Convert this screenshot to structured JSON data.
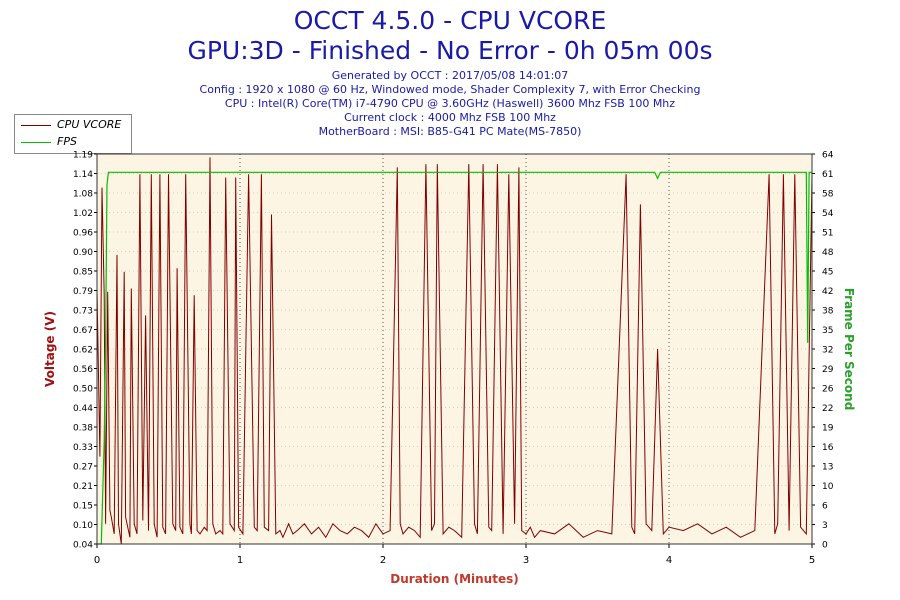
{
  "header": {
    "title": "OCCT 4.5.0 - CPU VCORE",
    "subtitle": "GPU:3D - Finished - No Error - 0h 05m 00s",
    "info_lines": [
      "Generated by OCCT : 2017/05/08 14:01:07",
      "Config : 1920 x 1080 @ 60 Hz, Windowed mode, Shader Complexity 7, with Error Checking",
      "CPU : Intel(R) Core(TM) i7-4790 CPU @ 3.60GHz (Haswell) 3600 Mhz FSB 100 Mhz",
      "Current clock : 4000 Mhz FSB 100 Mhz",
      "MotherBoard : MSI: B85-G41 PC Mate(MS-7850)"
    ]
  },
  "legend": [
    {
      "label": "CPU VCORE",
      "color": "#800000"
    },
    {
      "label": "FPS",
      "color": "#00c000"
    }
  ],
  "colors": {
    "plot_bg": "#fdf5e4",
    "vcore": "#800000",
    "fps": "#00c000",
    "left_axis": "#a01010",
    "right_axis": "#2ca02c",
    "xlabel": "#c0392b"
  },
  "chart_data": {
    "type": "line",
    "title": "",
    "xlabel": "Duration (Minutes)",
    "ylabel": "Voltage (V)",
    "y2label": "Frame Per Second",
    "xlim": [
      0,
      5
    ],
    "ylim": [
      0.04,
      1.2
    ],
    "y2lim": [
      0,
      64
    ],
    "x_ticks": [
      "0",
      "1",
      "2",
      "3",
      "4",
      "5"
    ],
    "y_ticks": [
      "0.04",
      "0.10",
      "0.15",
      "0.21",
      "0.27",
      "0.33",
      "0.38",
      "0.44",
      "0.50",
      "0.56",
      "0.62",
      "0.67",
      "0.73",
      "0.79",
      "0.85",
      "0.90",
      "0.96",
      "1.02",
      "1.08",
      "1.14",
      "1.19"
    ],
    "y2_ticks": [
      "0",
      "3",
      "6",
      "10",
      "13",
      "16",
      "19",
      "22",
      "26",
      "29",
      "32",
      "35",
      "38",
      "42",
      "45",
      "48",
      "51",
      "54",
      "58",
      "61",
      "64"
    ],
    "grid": true,
    "legend_position": "top-left",
    "series": [
      {
        "name": "CPU VCORE",
        "x": [
          0.0,
          0.02,
          0.035,
          0.05,
          0.06,
          0.075,
          0.09,
          0.1,
          0.12,
          0.14,
          0.15,
          0.17,
          0.19,
          0.2,
          0.23,
          0.24,
          0.26,
          0.28,
          0.3,
          0.32,
          0.34,
          0.36,
          0.38,
          0.4,
          0.42,
          0.44,
          0.46,
          0.48,
          0.5,
          0.53,
          0.55,
          0.56,
          0.58,
          0.6,
          0.62,
          0.65,
          0.66,
          0.68,
          0.7,
          0.72,
          0.75,
          0.77,
          0.79,
          0.81,
          0.83,
          0.86,
          0.88,
          0.9,
          0.93,
          0.96,
          0.97,
          0.99,
          1.02,
          1.06,
          1.1,
          1.12,
          1.15,
          1.17,
          1.2,
          1.22,
          1.25,
          1.28,
          1.3,
          1.32,
          1.34,
          1.37,
          1.4,
          1.45,
          1.5,
          1.55,
          1.6,
          1.65,
          1.7,
          1.75,
          1.8,
          1.85,
          1.9,
          1.95,
          2.0,
          2.05,
          2.1,
          2.12,
          2.14,
          2.18,
          2.22,
          2.26,
          2.3,
          2.34,
          2.36,
          2.38,
          2.42,
          2.46,
          2.5,
          2.55,
          2.6,
          2.64,
          2.66,
          2.7,
          2.74,
          2.76,
          2.8,
          2.84,
          2.88,
          2.92,
          2.95,
          2.97,
          3.0,
          3.03,
          3.06,
          3.1,
          3.2,
          3.3,
          3.4,
          3.5,
          3.6,
          3.7,
          3.74,
          3.76,
          3.8,
          3.84,
          3.88,
          3.92,
          3.96,
          4.0,
          4.1,
          4.2,
          4.3,
          4.4,
          4.5,
          4.6,
          4.7,
          4.74,
          4.76,
          4.8,
          4.84,
          4.88,
          4.92,
          4.96,
          5.0
        ],
        "y": [
          0.8,
          0.3,
          1.1,
          0.78,
          0.1,
          0.79,
          0.14,
          0.12,
          0.07,
          0.9,
          0.1,
          0.04,
          0.85,
          0.12,
          0.06,
          0.8,
          0.1,
          0.07,
          1.14,
          0.11,
          0.72,
          0.08,
          1.14,
          0.1,
          0.06,
          1.14,
          0.09,
          0.07,
          1.14,
          0.1,
          0.08,
          0.86,
          0.09,
          0.07,
          1.14,
          0.1,
          0.07,
          0.78,
          0.08,
          0.07,
          0.09,
          0.08,
          1.19,
          0.1,
          0.07,
          0.08,
          0.07,
          1.13,
          0.1,
          0.08,
          1.13,
          0.09,
          0.07,
          1.14,
          0.09,
          0.08,
          1.14,
          0.09,
          0.08,
          1.02,
          0.07,
          0.08,
          0.06,
          0.08,
          0.1,
          0.07,
          0.08,
          0.1,
          0.07,
          0.09,
          0.06,
          0.1,
          0.08,
          0.07,
          0.09,
          0.08,
          0.06,
          0.1,
          0.07,
          0.08,
          1.16,
          0.1,
          0.07,
          0.09,
          0.08,
          0.06,
          1.17,
          0.08,
          0.1,
          1.17,
          0.07,
          0.09,
          0.08,
          0.06,
          1.17,
          0.1,
          0.07,
          1.17,
          0.09,
          0.08,
          1.17,
          0.07,
          1.14,
          0.1,
          1.16,
          0.08,
          0.07,
          0.09,
          0.06,
          0.08,
          0.07,
          0.1,
          0.06,
          0.08,
          0.07,
          1.14,
          0.09,
          0.07,
          1.05,
          0.1,
          0.08,
          0.62,
          0.07,
          0.09,
          0.08,
          0.1,
          0.07,
          0.09,
          0.06,
          0.08,
          1.14,
          0.07,
          0.1,
          1.14,
          0.08,
          1.14,
          0.09,
          0.07,
          1.14
        ]
      },
      {
        "name": "FPS",
        "x": [
          0.0,
          0.03,
          0.05,
          0.06,
          0.07,
          0.08,
          0.1,
          1.0,
          2.0,
          3.0,
          3.9,
          3.92,
          3.94,
          4.0,
          4.5,
          4.96,
          4.97,
          4.98,
          5.0
        ],
        "y": [
          0,
          0,
          17,
          33,
          59,
          61,
          61,
          61,
          61,
          61,
          61,
          60,
          61,
          61,
          61,
          61,
          33,
          61,
          61
        ]
      }
    ]
  }
}
